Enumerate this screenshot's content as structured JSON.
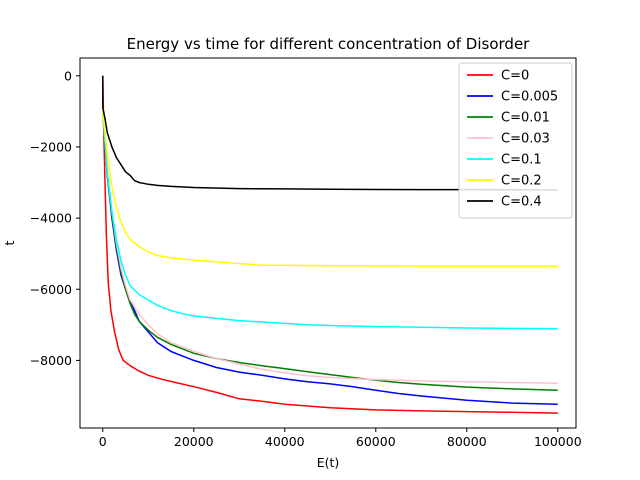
{
  "chart_data": {
    "type": "line",
    "title": "Energy vs time for different concentration of Disorder",
    "xlabel": "E(t)",
    "ylabel": "t",
    "xlim": [
      -5000,
      104000
    ],
    "ylim": [
      -9900,
      500
    ],
    "xticks": [
      0,
      20000,
      40000,
      60000,
      80000,
      100000
    ],
    "yticks": [
      0,
      -2000,
      -4000,
      -6000,
      -8000
    ],
    "grid": false,
    "legend_position": "top-right",
    "series": [
      {
        "name": "C=0",
        "color": "#ff0000",
        "points": [
          [
            0,
            0
          ],
          [
            200,
            -1500
          ],
          [
            500,
            -3000
          ],
          [
            800,
            -4500
          ],
          [
            1200,
            -5800
          ],
          [
            1800,
            -6600
          ],
          [
            2600,
            -7200
          ],
          [
            3500,
            -7700
          ],
          [
            4500,
            -8000
          ],
          [
            6000,
            -8150
          ],
          [
            8000,
            -8300
          ],
          [
            10000,
            -8420
          ],
          [
            13000,
            -8530
          ],
          [
            16000,
            -8620
          ],
          [
            20000,
            -8740
          ],
          [
            25000,
            -8900
          ],
          [
            30000,
            -9080
          ],
          [
            35000,
            -9150
          ],
          [
            40000,
            -9230
          ],
          [
            50000,
            -9330
          ],
          [
            60000,
            -9390
          ],
          [
            70000,
            -9420
          ],
          [
            80000,
            -9440
          ],
          [
            90000,
            -9460
          ],
          [
            100000,
            -9480
          ]
        ]
      },
      {
        "name": "C=0.005",
        "color": "#0000ff",
        "points": [
          [
            0,
            -1000
          ],
          [
            1000,
            -2800
          ],
          [
            2000,
            -4000
          ],
          [
            3000,
            -4900
          ],
          [
            4000,
            -5600
          ],
          [
            5000,
            -6000
          ],
          [
            6000,
            -6350
          ],
          [
            7000,
            -6600
          ],
          [
            8000,
            -6900
          ],
          [
            10000,
            -7200
          ],
          [
            12000,
            -7500
          ],
          [
            15000,
            -7750
          ],
          [
            20000,
            -8000
          ],
          [
            25000,
            -8200
          ],
          [
            30000,
            -8330
          ],
          [
            35000,
            -8420
          ],
          [
            40000,
            -8520
          ],
          [
            45000,
            -8600
          ],
          [
            50000,
            -8660
          ],
          [
            55000,
            -8740
          ],
          [
            60000,
            -8840
          ],
          [
            65000,
            -8930
          ],
          [
            70000,
            -9000
          ],
          [
            75000,
            -9060
          ],
          [
            80000,
            -9120
          ],
          [
            90000,
            -9200
          ],
          [
            100000,
            -9230
          ]
        ]
      },
      {
        "name": "C=0.01",
        "color": "#008000",
        "points": [
          [
            0,
            -1000
          ],
          [
            1000,
            -2800
          ],
          [
            2000,
            -3900
          ],
          [
            3000,
            -4800
          ],
          [
            4000,
            -5500
          ],
          [
            5000,
            -6000
          ],
          [
            6000,
            -6400
          ],
          [
            7000,
            -6700
          ],
          [
            8000,
            -6900
          ],
          [
            10000,
            -7150
          ],
          [
            12000,
            -7350
          ],
          [
            15000,
            -7550
          ],
          [
            20000,
            -7800
          ],
          [
            25000,
            -7950
          ],
          [
            30000,
            -8060
          ],
          [
            35000,
            -8150
          ],
          [
            40000,
            -8230
          ],
          [
            45000,
            -8320
          ],
          [
            50000,
            -8400
          ],
          [
            55000,
            -8480
          ],
          [
            60000,
            -8560
          ],
          [
            65000,
            -8620
          ],
          [
            70000,
            -8670
          ],
          [
            80000,
            -8750
          ],
          [
            90000,
            -8800
          ],
          [
            100000,
            -8840
          ]
        ]
      },
      {
        "name": "C=0.03",
        "color": "#ffc0cb",
        "points": [
          [
            0,
            -1000
          ],
          [
            1000,
            -2700
          ],
          [
            2000,
            -3800
          ],
          [
            3000,
            -4700
          ],
          [
            4000,
            -5400
          ],
          [
            5000,
            -5900
          ],
          [
            6000,
            -6300
          ],
          [
            8000,
            -6700
          ],
          [
            10000,
            -7000
          ],
          [
            12000,
            -7250
          ],
          [
            15000,
            -7500
          ],
          [
            20000,
            -7750
          ],
          [
            25000,
            -7950
          ],
          [
            30000,
            -8100
          ],
          [
            35000,
            -8250
          ],
          [
            40000,
            -8350
          ],
          [
            45000,
            -8430
          ],
          [
            50000,
            -8480
          ],
          [
            60000,
            -8540
          ],
          [
            70000,
            -8580
          ],
          [
            80000,
            -8600
          ],
          [
            90000,
            -8620
          ],
          [
            100000,
            -8640
          ]
        ]
      },
      {
        "name": "C=0.1",
        "color": "#00ffff",
        "points": [
          [
            0,
            -1000
          ],
          [
            1000,
            -2700
          ],
          [
            2000,
            -3800
          ],
          [
            3000,
            -4600
          ],
          [
            4000,
            -5200
          ],
          [
            5000,
            -5600
          ],
          [
            6000,
            -5900
          ],
          [
            8000,
            -6150
          ],
          [
            10000,
            -6300
          ],
          [
            12000,
            -6450
          ],
          [
            15000,
            -6600
          ],
          [
            18000,
            -6700
          ],
          [
            20000,
            -6750
          ],
          [
            25000,
            -6820
          ],
          [
            30000,
            -6880
          ],
          [
            35000,
            -6920
          ],
          [
            40000,
            -6960
          ],
          [
            45000,
            -7000
          ],
          [
            50000,
            -7020
          ],
          [
            60000,
            -7050
          ],
          [
            70000,
            -7070
          ],
          [
            80000,
            -7090
          ],
          [
            90000,
            -7100
          ],
          [
            100000,
            -7110
          ]
        ]
      },
      {
        "name": "C=0.2",
        "color": "#ffff00",
        "points": [
          [
            0,
            -1000
          ],
          [
            1000,
            -2200
          ],
          [
            2000,
            -3100
          ],
          [
            3000,
            -3700
          ],
          [
            4000,
            -4100
          ],
          [
            5000,
            -4400
          ],
          [
            6000,
            -4600
          ],
          [
            8000,
            -4800
          ],
          [
            10000,
            -4950
          ],
          [
            12000,
            -5050
          ],
          [
            15000,
            -5120
          ],
          [
            20000,
            -5180
          ],
          [
            25000,
            -5230
          ],
          [
            30000,
            -5280
          ],
          [
            35000,
            -5320
          ],
          [
            40000,
            -5330
          ],
          [
            50000,
            -5340
          ],
          [
            60000,
            -5345
          ],
          [
            70000,
            -5350
          ],
          [
            80000,
            -5350
          ],
          [
            90000,
            -5350
          ],
          [
            100000,
            -5350
          ]
        ]
      },
      {
        "name": "C=0.4",
        "color": "#000000",
        "points": [
          [
            0,
            0
          ],
          [
            0,
            -900
          ],
          [
            500,
            -1200
          ],
          [
            1000,
            -1600
          ],
          [
            2000,
            -2000
          ],
          [
            3000,
            -2300
          ],
          [
            4000,
            -2500
          ],
          [
            5000,
            -2700
          ],
          [
            6000,
            -2800
          ],
          [
            7000,
            -2950
          ],
          [
            8000,
            -3000
          ],
          [
            10000,
            -3050
          ],
          [
            12000,
            -3080
          ],
          [
            15000,
            -3110
          ],
          [
            20000,
            -3140
          ],
          [
            30000,
            -3170
          ],
          [
            40000,
            -3180
          ],
          [
            50000,
            -3190
          ],
          [
            60000,
            -3195
          ],
          [
            70000,
            -3200
          ],
          [
            80000,
            -3200
          ],
          [
            90000,
            -3205
          ],
          [
            100000,
            -3210
          ]
        ]
      }
    ]
  }
}
